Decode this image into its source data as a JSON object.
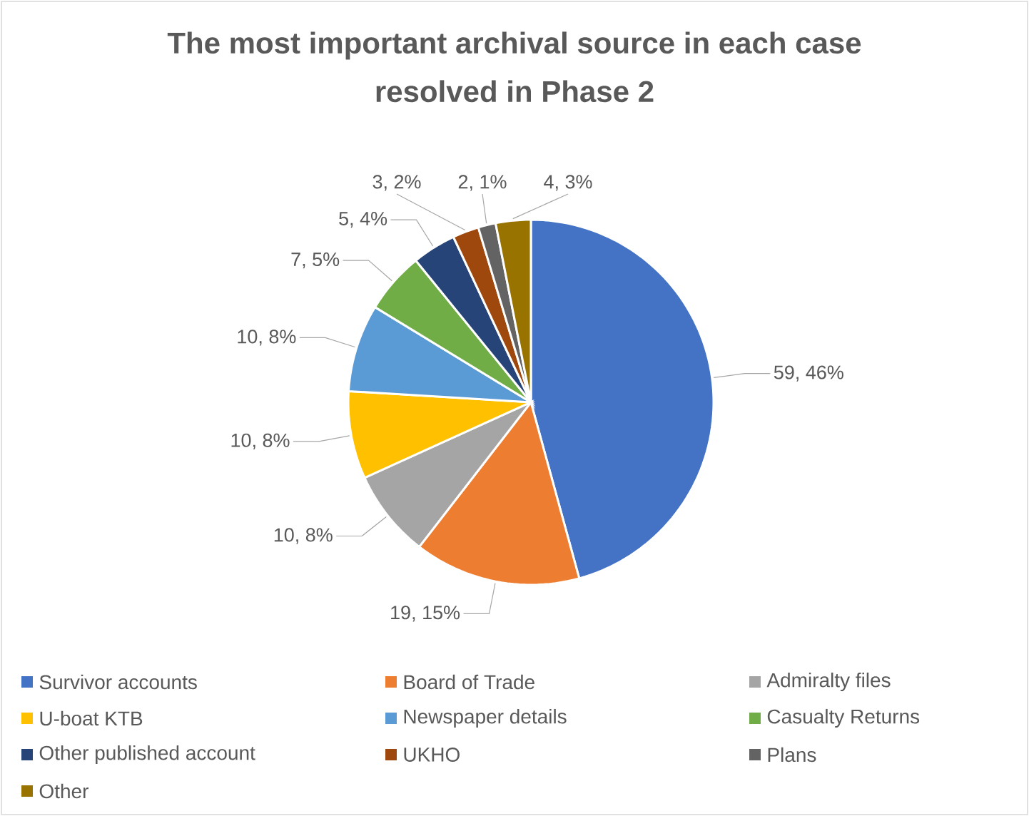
{
  "chart_data": {
    "type": "pie",
    "title": "The most important archival source in each case resolved in Phase 2",
    "categories": [
      "Survivor accounts",
      "Board of Trade",
      "Admiralty files",
      "U-boat KTB",
      "Newspaper details",
      "Casualty Returns",
      "Other published account",
      "UKHO",
      "Plans",
      "Other"
    ],
    "values": [
      59,
      19,
      10,
      10,
      10,
      7,
      5,
      3,
      2,
      4
    ],
    "colors": [
      "#4472c4",
      "#ed7d31",
      "#a5a5a5",
      "#ffc000",
      "#5b9bd5",
      "#70ad47",
      "#264478",
      "#9e480e",
      "#636363",
      "#997300"
    ],
    "value_labels": [
      "59, 46%",
      "19, 15%",
      "10, 8%",
      "10, 8%",
      "10, 8%",
      "7, 5%",
      "5, 4%",
      "3, 2%",
      "2, 1%",
      "4, 3%"
    ],
    "legend": "bottom"
  }
}
